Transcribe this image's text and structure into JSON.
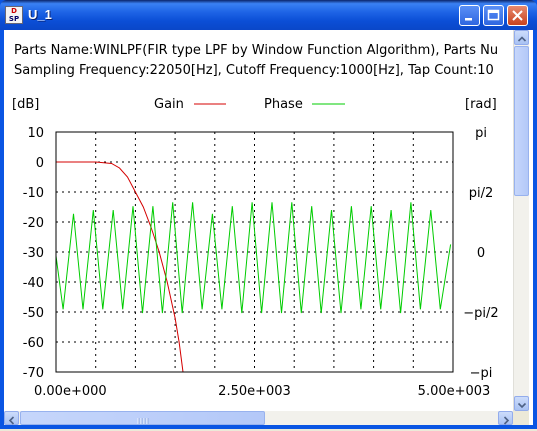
{
  "window": {
    "title": "U_1",
    "app_icon_text": [
      "D",
      "SP"
    ],
    "buttons": [
      "minimize",
      "maximize",
      "close"
    ]
  },
  "info": {
    "line1": "Parts Name:WINLPF(FIR type LPF by Window Function Algorithm), Parts Nu",
    "line2": "Sampling Frequency:22050[Hz], Cutoff Frequency:1000[Hz], Tap Count:10"
  },
  "colors": {
    "gain": "#d40000",
    "phase": "#00cc00",
    "grid": "#000000",
    "title_bar": "#0a55e3"
  },
  "chart_data": {
    "type": "line",
    "left_unit": "[dB]",
    "right_unit": "[rad]",
    "x_range": [
      0,
      5000
    ],
    "x_tick_labels": [
      "0.00e+000",
      "2.50e+003",
      "5.00e+003"
    ],
    "y_left_range": [
      -70,
      10
    ],
    "y_left_tick_labels": [
      "10",
      "0",
      "-10",
      "-20",
      "-30",
      "-40",
      "-50",
      "-60",
      "-70"
    ],
    "y_right_range": [
      -3.1416,
      3.1416
    ],
    "y_right_tick_labels": [
      "pi",
      "pi/2",
      "0",
      "−pi/2",
      "−pi"
    ],
    "grid": true,
    "legend_position": "top",
    "series": [
      {
        "name": "Gain",
        "axis": "left",
        "x": [
          0,
          500,
          700,
          800,
          900,
          1000,
          1100,
          1200,
          1300,
          1400,
          1500,
          1550,
          1600
        ],
        "y": [
          0,
          0,
          -0.5,
          -2,
          -5,
          -10,
          -15,
          -22,
          -30,
          -40,
          -52,
          -60,
          -70
        ]
      },
      {
        "name": "Phase",
        "axis": "right",
        "x": [
          0,
          90,
          220,
          340,
          470,
          590,
          720,
          840,
          970,
          1090,
          1220,
          1340,
          1470,
          1590,
          1720,
          1840,
          1970,
          2090,
          2220,
          2340,
          2470,
          2590,
          2720,
          2840,
          2970,
          3090,
          3220,
          3340,
          3470,
          3590,
          3720,
          3840,
          3970,
          4090,
          4220,
          4340,
          4470,
          4590,
          4720,
          4840,
          4970
        ],
        "y": [
          -0.1,
          -1.5,
          1.0,
          -1.5,
          1.1,
          -1.5,
          1.1,
          -1.5,
          1.2,
          -1.6,
          1.2,
          -1.6,
          1.3,
          -1.6,
          1.3,
          -1.5,
          1.0,
          -1.5,
          1.2,
          -1.6,
          1.3,
          -1.6,
          1.3,
          -1.6,
          1.3,
          -1.6,
          1.2,
          -1.6,
          1.1,
          -1.6,
          1.2,
          -1.5,
          1.2,
          -1.5,
          1.1,
          -1.6,
          1.3,
          -1.5,
          1.1,
          -1.5,
          0.2
        ]
      }
    ]
  }
}
